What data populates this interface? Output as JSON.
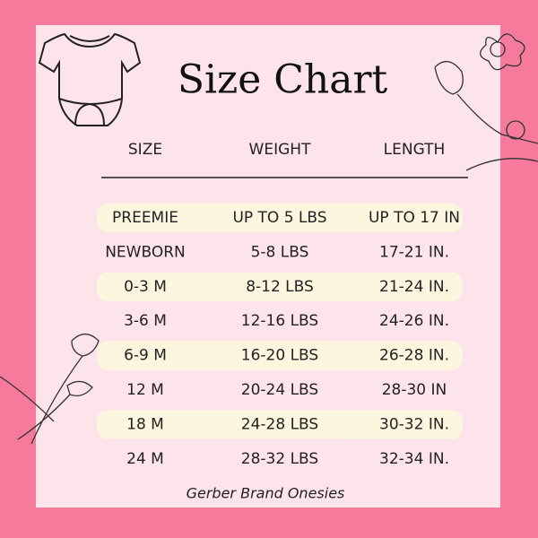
{
  "header": {
    "title": "Size Chart"
  },
  "table": {
    "columns": [
      "SIZE",
      "WEIGHT",
      "LENGTH"
    ],
    "rows": [
      [
        "PREEMIE",
        "UP TO 5 LBS",
        "UP TO 17 IN"
      ],
      [
        "NEWBORN",
        "5-8 LBS",
        "17-21 IN."
      ],
      [
        "0-3 M",
        "8-12 LBS",
        "21-24 IN."
      ],
      [
        "3-6 M",
        "12-16 LBS",
        "24-26 IN."
      ],
      [
        "6-9 M",
        "16-20 LBS",
        "26-28 IN."
      ],
      [
        "12 M",
        "20-24 LBS",
        "28-30 IN"
      ],
      [
        "18 M",
        "24-28 LBS",
        "30-32 IN."
      ],
      [
        "24 M",
        "28-32 LBS",
        "32-34 IN."
      ]
    ]
  },
  "footer": {
    "note": "Gerber Brand Onesies"
  }
}
